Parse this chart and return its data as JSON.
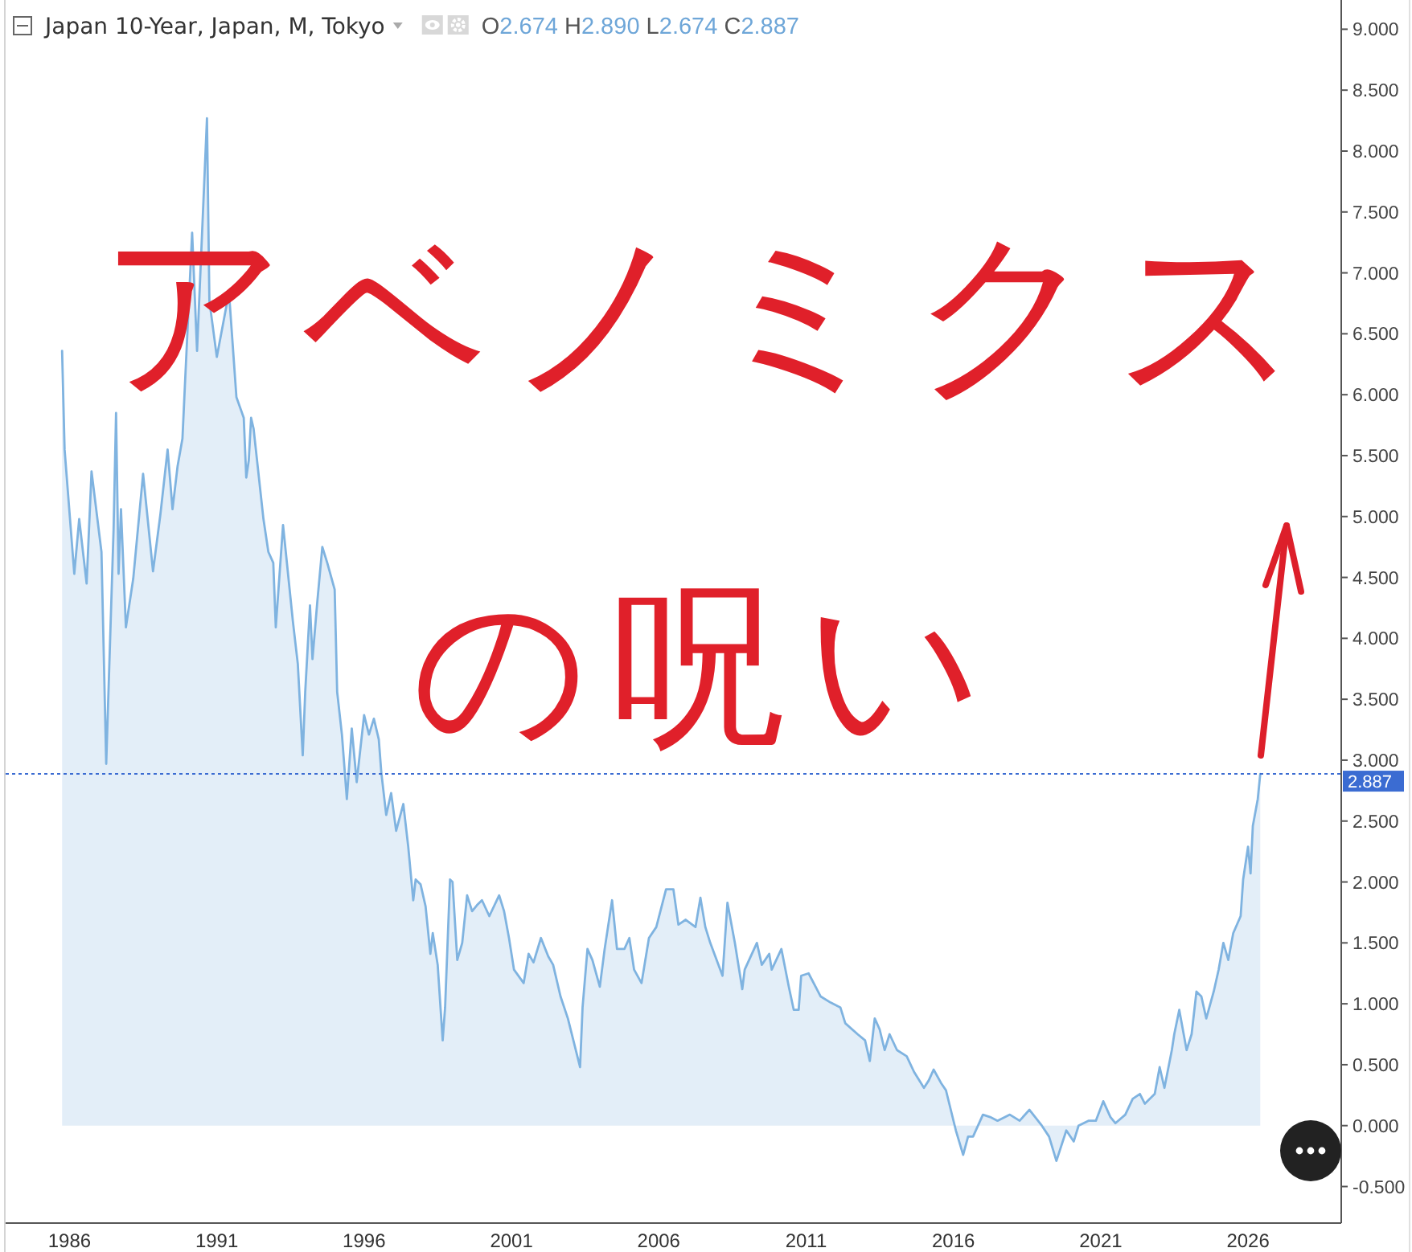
{
  "chart_data": {
    "type": "area",
    "title": "Japan 10-Year, Japan, M, Tokyo",
    "subtitle": "O2.674 H2.890 L2.674 C2.887",
    "annotations": [
      "アベノミクス",
      "の呪い"
    ],
    "x": [
      "1985-10",
      "1985-11",
      "1986-03",
      "1986-05",
      "1986-08",
      "1986-10",
      "1987-02",
      "1987-04",
      "1987-07",
      "1987-08",
      "1987-09",
      "1987-10",
      "1987-12",
      "1988-03",
      "1988-07",
      "1988-11",
      "1989-02",
      "1989-05",
      "1989-07",
      "1989-09",
      "1989-11",
      "1989-12",
      "1990-03",
      "1990-05",
      "1990-09",
      "1990-10",
      "1991-01",
      "1991-06",
      "1991-09",
      "1991-12",
      "1992-01",
      "1992-02",
      "1992-03",
      "1992-04",
      "1992-08",
      "1992-10",
      "1992-12",
      "1993-01",
      "1993-04",
      "1993-08",
      "1993-10",
      "1993-12",
      "1994-01",
      "1994-03",
      "1994-04",
      "1994-06",
      "1994-08",
      "1994-10",
      "1995-01",
      "1995-02",
      "1995-04",
      "1995-06",
      "1995-08",
      "1995-10",
      "1996-01",
      "1996-03",
      "1996-05",
      "1996-07",
      "1996-08",
      "1996-10",
      "1996-12",
      "1997-02",
      "1997-05",
      "1997-07",
      "1997-09",
      "1997-10",
      "1997-12",
      "1998-02",
      "1998-04",
      "1998-05",
      "1998-07",
      "1998-09",
      "1998-10",
      "1998-12",
      "1999-01",
      "1999-03",
      "1999-05",
      "1999-07",
      "1999-09",
      "1999-11",
      "2000-01",
      "2000-04",
      "2000-08",
      "2000-10",
      "2000-12",
      "2001-02",
      "2001-06",
      "2001-08",
      "2001-10",
      "2002-01",
      "2002-04",
      "2002-06",
      "2002-09",
      "2002-12",
      "2003-05",
      "2003-06",
      "2003-08",
      "2003-10",
      "2004-01",
      "2004-03",
      "2004-06",
      "2004-08",
      "2004-11",
      "2005-01",
      "2005-03",
      "2005-06",
      "2005-09",
      "2005-12",
      "2006-04",
      "2006-07",
      "2006-09",
      "2006-12",
      "2007-04",
      "2007-06",
      "2007-08",
      "2007-10",
      "2008-03",
      "2008-05",
      "2008-08",
      "2008-11",
      "2008-12",
      "2009-05",
      "2009-07",
      "2009-10",
      "2009-11",
      "2010-03",
      "2010-06",
      "2010-08",
      "2010-10",
      "2010-11",
      "2011-02",
      "2011-07",
      "2011-11",
      "2012-03",
      "2012-05",
      "2012-10",
      "2013-01",
      "2013-03",
      "2013-05",
      "2013-07",
      "2013-09",
      "2013-11",
      "2014-02",
      "2014-06",
      "2014-09",
      "2015-01",
      "2015-03",
      "2015-05",
      "2015-08",
      "2015-10",
      "2016-02",
      "2016-05",
      "2016-07",
      "2016-09",
      "2017-01",
      "2017-04",
      "2017-07",
      "2017-12",
      "2018-04",
      "2018-08",
      "2019-01",
      "2019-04",
      "2019-07",
      "2019-11",
      "2020-02",
      "2020-04",
      "2020-08",
      "2020-11",
      "2021-02",
      "2021-05",
      "2021-07",
      "2021-11",
      "2022-02",
      "2022-05",
      "2022-07",
      "2022-11",
      "2023-01",
      "2023-03",
      "2023-06",
      "2023-07",
      "2023-09",
      "2023-12",
      "2024-02",
      "2024-04",
      "2024-06",
      "2024-08",
      "2024-11",
      "2025-01",
      "2025-03",
      "2025-05",
      "2025-07",
      "2025-10",
      "2025-11",
      "2026-01",
      "2026-02",
      "2026-03",
      "2026-05",
      "2026-06"
    ],
    "series": [
      {
        "color": "#7fb3e0",
        "values": [
          6.36,
          5.55,
          4.53,
          4.98,
          4.45,
          5.37,
          4.71,
          2.97,
          4.89,
          5.85,
          4.53,
          5.06,
          4.09,
          4.49,
          5.35,
          4.55,
          5.02,
          5.55,
          5.06,
          5.41,
          5.64,
          6.07,
          7.33,
          6.36,
          8.27,
          6.77,
          6.31,
          6.84,
          5.98,
          5.81,
          5.32,
          5.46,
          5.81,
          5.72,
          4.98,
          4.71,
          4.62,
          4.09,
          4.93,
          4.14,
          3.79,
          3.04,
          3.56,
          4.27,
          3.83,
          4.31,
          4.75,
          4.62,
          4.4,
          3.56,
          3.21,
          2.68,
          3.26,
          2.82,
          3.37,
          3.21,
          3.34,
          3.17,
          2.9,
          2.55,
          2.73,
          2.42,
          2.64,
          2.29,
          1.85,
          2.02,
          1.98,
          1.8,
          1.41,
          1.58,
          1.32,
          0.7,
          0.97,
          2.02,
          2.0,
          1.36,
          1.5,
          1.89,
          1.76,
          1.81,
          1.85,
          1.72,
          1.89,
          1.76,
          1.54,
          1.28,
          1.17,
          1.41,
          1.34,
          1.54,
          1.39,
          1.32,
          1.06,
          0.88,
          0.48,
          0.97,
          1.45,
          1.36,
          1.14,
          1.45,
          1.85,
          1.45,
          1.45,
          1.54,
          1.28,
          1.17,
          1.54,
          1.63,
          1.94,
          1.94,
          1.65,
          1.69,
          1.63,
          1.87,
          1.63,
          1.5,
          1.23,
          1.83,
          1.5,
          1.12,
          1.28,
          1.5,
          1.32,
          1.41,
          1.28,
          1.45,
          1.14,
          0.95,
          0.95,
          1.23,
          1.25,
          1.06,
          1.01,
          0.97,
          0.84,
          0.75,
          0.7,
          0.53,
          0.88,
          0.79,
          0.62,
          0.75,
          0.62,
          0.57,
          0.44,
          0.31,
          0.37,
          0.46,
          0.35,
          0.29,
          -0.04,
          -0.24,
          -0.09,
          -0.09,
          0.09,
          0.07,
          0.04,
          0.09,
          0.04,
          0.13,
          0.0,
          -0.09,
          -0.29,
          -0.04,
          -0.13,
          0.0,
          0.04,
          0.04,
          0.2,
          0.07,
          0.02,
          0.09,
          0.22,
          0.26,
          0.18,
          0.26,
          0.48,
          0.31,
          0.62,
          0.75,
          0.95,
          0.62,
          0.75,
          1.1,
          1.06,
          0.88,
          1.1,
          1.28,
          1.5,
          1.36,
          1.58,
          1.72,
          2.02,
          2.29,
          2.07,
          2.46,
          2.68,
          2.887
        ]
      }
    ],
    "xlim": [
      "1983-11",
      "2029-03"
    ],
    "xticks": [
      "1986",
      "1991",
      "1996",
      "2001",
      "2006",
      "2011",
      "2016",
      "2021",
      "2026"
    ],
    "ylim": [
      -0.8,
      9.24
    ],
    "yticks": [
      {
        "value": -0.5,
        "label": "-0.500"
      },
      {
        "value": 0,
        "label": "0.000"
      },
      {
        "value": 0.5,
        "label": "0.500"
      },
      {
        "value": 1,
        "label": "1.000"
      },
      {
        "value": 1.5,
        "label": "1.500"
      },
      {
        "value": 2,
        "label": "2.000"
      },
      {
        "value": 2.5,
        "label": "2.500"
      },
      {
        "value": 3,
        "label": "3.000"
      },
      {
        "value": 3.5,
        "label": "3.500"
      },
      {
        "value": 4,
        "label": "4.000"
      },
      {
        "value": 4.5,
        "label": "4.500"
      },
      {
        "value": 5,
        "label": "5.000"
      },
      {
        "value": 5.5,
        "label": "5.500"
      },
      {
        "value": 6,
        "label": "6.000"
      },
      {
        "value": 6.5,
        "label": "6.500"
      },
      {
        "value": 7,
        "label": "7.000"
      },
      {
        "value": 7.5,
        "label": "7.500"
      },
      {
        "value": 8,
        "label": "8.000"
      },
      {
        "value": 8.5,
        "label": "8.500"
      },
      {
        "value": 9,
        "label": "9.000"
      }
    ],
    "ref_lines": [
      {
        "axis": "y",
        "value": 2.887,
        "label": "2.887",
        "color": "#3b6cd2",
        "line_style": "dotted"
      }
    ]
  }
}
